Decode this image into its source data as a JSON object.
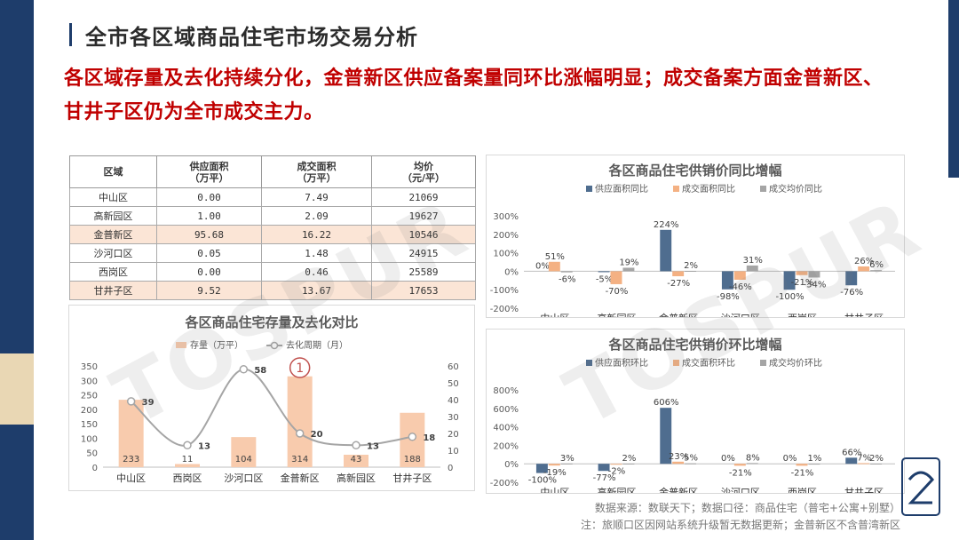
{
  "header": {
    "title": "全市各区域商品住宅市场交易分析",
    "headline": "各区域存量及去化持续分化，金普新区供应备案量同环比涨幅明显；成交备案方面金普新区、甘井子区仍为全市成交主力。"
  },
  "table": {
    "headers": [
      {
        "l1": "区域",
        "l2": ""
      },
      {
        "l1": "供应面积",
        "l2": "（万平）"
      },
      {
        "l1": "成交面积",
        "l2": "（万平）"
      },
      {
        "l1": "均价",
        "l2": "（元/平）"
      }
    ],
    "rows": [
      {
        "region": "中山区",
        "supply": "0.00",
        "deal": "7.49",
        "price": "21069",
        "highlight": false
      },
      {
        "region": "高新园区",
        "supply": "1.00",
        "deal": "2.09",
        "price": "19627",
        "highlight": false
      },
      {
        "region": "金普新区",
        "supply": "95.68",
        "deal": "16.22",
        "price": "10546",
        "highlight": true
      },
      {
        "region": "沙河口区",
        "supply": "0.05",
        "deal": "1.48",
        "price": "24915",
        "highlight": false
      },
      {
        "region": "西岗区",
        "supply": "0.00",
        "deal": "0.46",
        "price": "25589",
        "highlight": false
      },
      {
        "region": "甘井子区",
        "supply": "9.52",
        "deal": "13.67",
        "price": "17653",
        "highlight": true
      }
    ]
  },
  "colors": {
    "supply": "#4f6d8f",
    "area": "#f4b183",
    "price": "#a5a5a5",
    "stock_bar": "#f8cbad",
    "line": "#a5a5a5",
    "annotation": "#c0504d"
  },
  "chart_data": [
    {
      "type": "bar",
      "title": "各区商品住宅供销价同比增幅",
      "categories": [
        "中山区",
        "高新园区",
        "金普新区",
        "沙河口区",
        "西岗区",
        "甘井子区"
      ],
      "ylim": [
        -200,
        300
      ],
      "yticks": [
        "300%",
        "200%",
        "100%",
        "0%",
        "-100%",
        "-200%"
      ],
      "legend_position": "top",
      "series": [
        {
          "name": "供应面积同比",
          "values": [
            0,
            -5,
            224,
            -98,
            -100,
            -76
          ],
          "labels": [
            "0%",
            "-5%",
            "224%",
            "-98%",
            "-100%",
            "-76%"
          ]
        },
        {
          "name": "成交面积同比",
          "values": [
            51,
            -70,
            -27,
            -46,
            -21,
            26
          ],
          "labels": [
            "51%",
            "-70%",
            "-27%",
            "-46%",
            "-21%",
            "26%"
          ]
        },
        {
          "name": "成交均价同比",
          "values": [
            -6,
            19,
            2,
            31,
            -34,
            6
          ],
          "labels": [
            "-6%",
            "19%",
            "2%",
            "31%",
            "-34%",
            "6%"
          ]
        }
      ]
    },
    {
      "type": "bar",
      "title": "各区商品住宅供销价环比增幅",
      "categories": [
        "中山区",
        "高新园区",
        "金普新区",
        "沙河口区",
        "西岗区",
        "甘井子区"
      ],
      "ylim": [
        -200,
        800
      ],
      "yticks": [
        "800%",
        "600%",
        "400%",
        "200%",
        "0%",
        "-200%"
      ],
      "legend_position": "top",
      "series": [
        {
          "name": "供应面积环比",
          "values": [
            -100,
            -77,
            606,
            0,
            0,
            66
          ],
          "labels": [
            "-100%",
            "-77%",
            "606%",
            "0%",
            "0%",
            "66%"
          ]
        },
        {
          "name": "成交面积环比",
          "values": [
            -19,
            -2,
            23,
            -21,
            -21,
            7
          ],
          "labels": [
            "-19%",
            "-2%",
            "23%",
            "-21%",
            "-21%",
            "7%"
          ]
        },
        {
          "name": "成交均价环比",
          "values": [
            3,
            2,
            5,
            8,
            1,
            2
          ],
          "labels": [
            "3%",
            "2%",
            "5%",
            "8%",
            "1%",
            "2%"
          ]
        }
      ]
    },
    {
      "type": "bar",
      "title": "各区商品住宅存量及去化对比",
      "categories": [
        "中山区",
        "西岗区",
        "沙河口区",
        "金普新区",
        "高新园区",
        "甘井子区"
      ],
      "ylim": [
        0,
        350
      ],
      "y2lim": [
        0,
        60
      ],
      "yticks": [
        "350",
        "300",
        "250",
        "200",
        "150",
        "100",
        "50",
        "0"
      ],
      "y2ticks": [
        "60",
        "50",
        "40",
        "30",
        "20",
        "10",
        "0"
      ],
      "legend_position": "top",
      "series": [
        {
          "name": "存量（万平）",
          "type": "bar",
          "values": [
            233,
            11,
            104,
            314,
            43,
            188
          ]
        },
        {
          "name": "去化周期（月）",
          "type": "line",
          "axis": "right",
          "values": [
            39,
            13,
            58,
            20,
            13,
            18
          ]
        }
      ],
      "annotation": "1"
    }
  ],
  "footer": {
    "line1": "数据来源：数联天下；数据口径：商品住宅（普宅+公寓+别墅）",
    "line2": "注：旅顺口区因网站系统升级暂无数据更新；金普新区不含普湾新区"
  },
  "watermark": "TOSPUR"
}
